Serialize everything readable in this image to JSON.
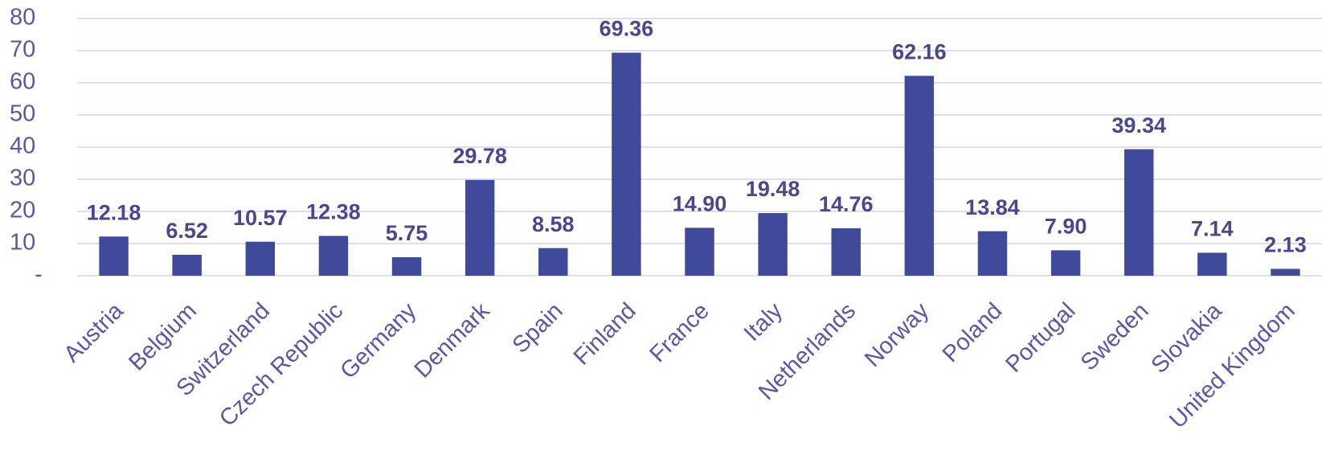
{
  "chart_data": {
    "type": "bar",
    "categories": [
      "Austria",
      "Belgium",
      "Switzerland",
      "Czech Republic",
      "Germany",
      "Denmark",
      "Spain",
      "Finland",
      "France",
      "Italy",
      "Netherlands",
      "Norway",
      "Poland",
      "Portugal",
      "Sweden",
      "Slovakia",
      "United Kingdom"
    ],
    "values": [
      12.18,
      6.52,
      10.57,
      12.38,
      5.75,
      29.78,
      8.58,
      69.36,
      14.9,
      19.48,
      14.76,
      62.16,
      13.84,
      7.9,
      39.34,
      7.14,
      2.13
    ],
    "value_labels": [
      "12.18",
      "6.52",
      "10.57",
      "12.38",
      "5.75",
      "29.78",
      "8.58",
      "69.36",
      "14.90",
      "19.48",
      "14.76",
      "62.16",
      "13.84",
      "7.90",
      "39.34",
      "7.14",
      "2.13"
    ],
    "color": "#3f4a9a",
    "ylim": [
      0,
      80
    ],
    "yticks": [
      {
        "value": 0,
        "label": "-"
      },
      10,
      20,
      30,
      40,
      50,
      60,
      70,
      80
    ],
    "grid": true
  }
}
